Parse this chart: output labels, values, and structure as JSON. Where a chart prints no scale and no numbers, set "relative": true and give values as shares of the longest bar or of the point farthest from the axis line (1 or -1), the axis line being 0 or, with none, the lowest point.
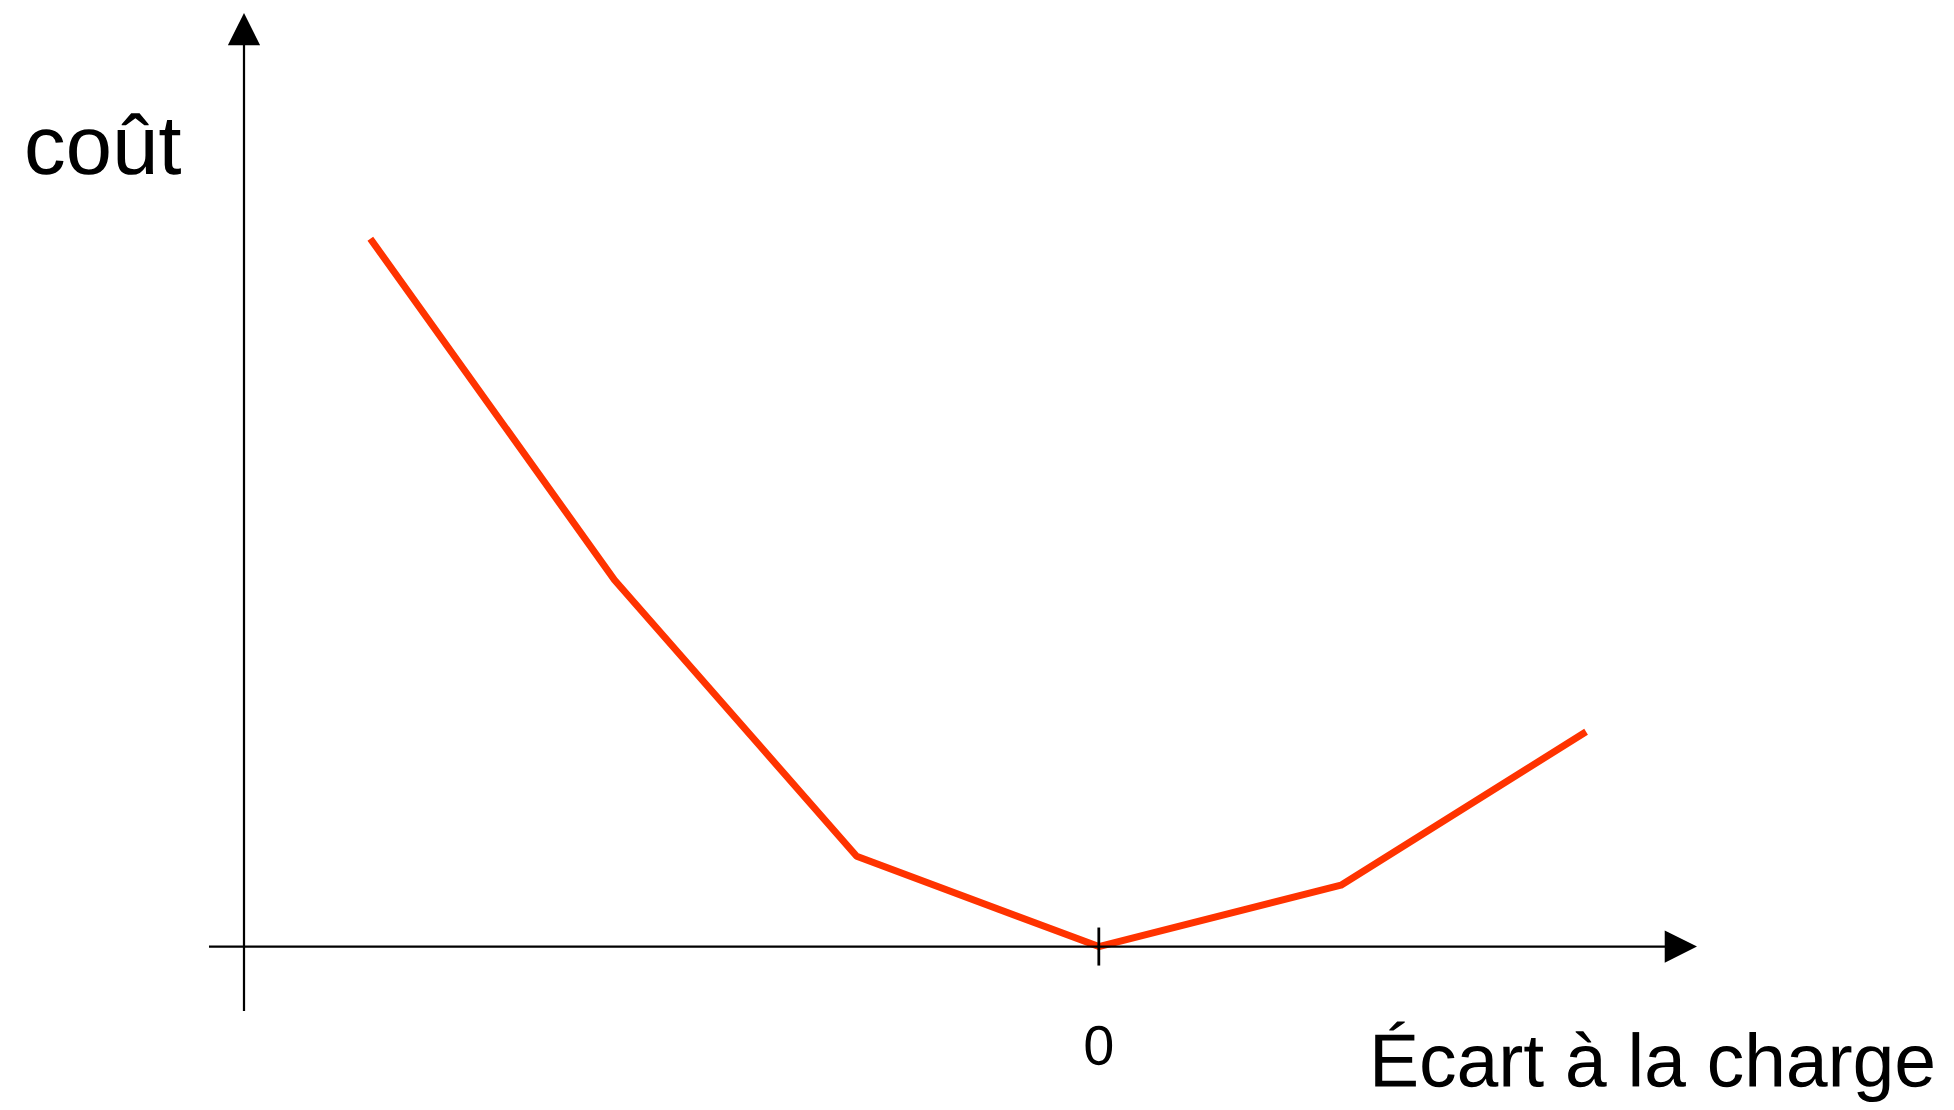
{
  "chart_data": {
    "type": "line",
    "relative": true,
    "ylabel": "coût",
    "xlabel": "Écart à la charge",
    "categories": [
      null,
      null,
      null,
      null,
      null,
      null
    ],
    "annotations": [
      "0"
    ],
    "series": [
      {
        "color": "#ff3300",
        "values": [
          1,
          0.52,
          0.128,
          0,
          0.087,
          0.302
        ]
      }
    ],
    "legend": false,
    "line_style": "solid",
    "marker": "none"
  }
}
